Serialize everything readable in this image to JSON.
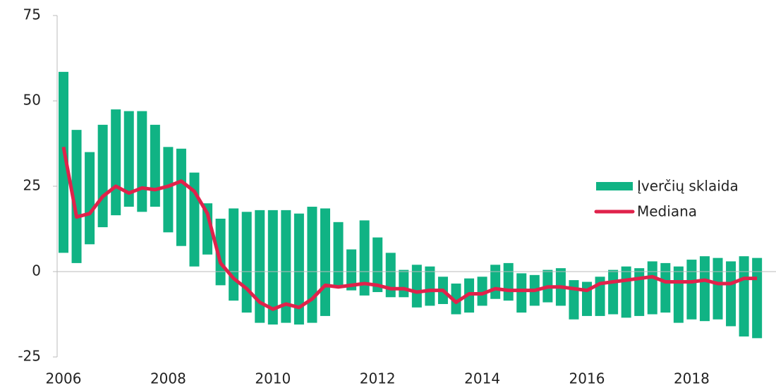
{
  "chart_data": {
    "type": "floating_bar_line",
    "categories": [
      "2006",
      null,
      null,
      null,
      null,
      null,
      null,
      null,
      "2008",
      null,
      null,
      null,
      null,
      null,
      null,
      null,
      "2010",
      null,
      null,
      null,
      null,
      null,
      null,
      null,
      "2012",
      null,
      null,
      null,
      null,
      null,
      null,
      null,
      "2014",
      null,
      null,
      null,
      null,
      null,
      null,
      null,
      "2016",
      null,
      null,
      null,
      null,
      null,
      null,
      null,
      "2018",
      null,
      null,
      null,
      null,
      null
    ],
    "series": [
      {
        "name": "Įverčių sklaida",
        "color": "#10b384",
        "high": [
          58.5,
          41.5,
          35,
          43,
          47.5,
          47,
          47,
          43,
          36.5,
          36,
          29,
          20,
          15.5,
          18.5,
          17.5,
          18,
          18,
          18,
          17,
          19,
          18.5,
          14.5,
          6.5,
          15,
          10,
          5.5,
          0.5,
          2,
          1.5,
          -1.5,
          -3.5,
          -2,
          -1.5,
          2,
          2.5,
          -0.5,
          -1,
          0.5,
          1,
          -2.5,
          -3,
          -1.5,
          0.5,
          1.5,
          1,
          3,
          2.5,
          1.5,
          3.5,
          4.5,
          4,
          3,
          4.5,
          4
        ],
        "low": [
          5.5,
          2.5,
          8,
          13,
          16.5,
          19,
          17.5,
          19,
          11.5,
          7.5,
          1.5,
          5,
          -4,
          -8.5,
          -12,
          -15,
          -15.5,
          -15,
          -15.5,
          -15,
          -13,
          -4.5,
          -5.5,
          -7,
          -6,
          -7.5,
          -7.5,
          -10.5,
          -10,
          -9.5,
          -12.5,
          -12,
          -10,
          -8,
          -8.5,
          -12,
          -10,
          -9,
          -10,
          -14,
          -13,
          -13,
          -12.5,
          -13.5,
          -13,
          -12.5,
          -12,
          -15,
          -14,
          -14.5,
          -14,
          -16,
          -19,
          -19.5
        ]
      },
      {
        "name": "Mediana",
        "color": "#e0224b",
        "values": [
          36.5,
          16,
          17,
          22,
          25,
          23,
          24.5,
          24,
          25,
          26.5,
          23.5,
          17,
          2.5,
          -2,
          -5,
          -9,
          -11,
          -9.5,
          -10.5,
          -8,
          -4,
          -4.5,
          -4,
          -3.5,
          -4,
          -5,
          -5,
          -6,
          -5.5,
          -5.5,
          -9,
          -6.5,
          -6.5,
          -5,
          -5.5,
          -5.5,
          -5.5,
          -4.5,
          -4.5,
          -5,
          -5.5,
          -3.5,
          -3,
          -2.5,
          -2,
          -1.5,
          -3,
          -3,
          -3,
          -2.5,
          -3.5,
          -3.5,
          -2,
          -2
        ]
      }
    ],
    "ylim": [
      -25,
      75
    ],
    "yticks": [
      -25,
      0,
      25,
      50,
      75
    ]
  }
}
